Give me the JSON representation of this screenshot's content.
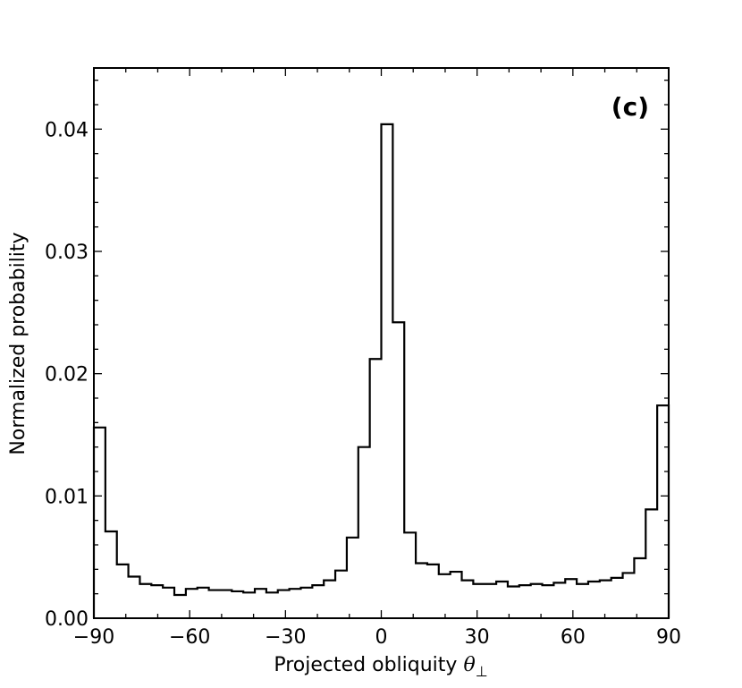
{
  "chart_data": {
    "type": "histogram",
    "panel_label": "(c)",
    "xlabel": "Projected obliquity",
    "xlabel_symbol": "θ",
    "xlabel_subscript": "⊥",
    "ylabel": "Normalized probability",
    "xlim": [
      -90,
      90
    ],
    "ylim": [
      0,
      0.045
    ],
    "x_ticks": [
      -90,
      -60,
      -30,
      0,
      30,
      60,
      90
    ],
    "x_tick_labels": [
      "−90",
      "−60",
      "−30",
      "0",
      "30",
      "60",
      "90"
    ],
    "y_ticks": [
      0.0,
      0.01,
      0.02,
      0.03,
      0.04
    ],
    "y_tick_labels": [
      "0.00",
      "0.01",
      "0.02",
      "0.03",
      "0.04"
    ],
    "bin_width": 3.6,
    "bin_edges_start": -90,
    "values": [
      0.0156,
      0.0071,
      0.0044,
      0.0034,
      0.0028,
      0.0027,
      0.0025,
      0.0019,
      0.0024,
      0.0025,
      0.0023,
      0.0023,
      0.0022,
      0.0021,
      0.0024,
      0.0021,
      0.0023,
      0.0024,
      0.0025,
      0.0027,
      0.0031,
      0.0039,
      0.0066,
      0.014,
      0.0212,
      0.0404,
      0.0242,
      0.007,
      0.0045,
      0.0044,
      0.0036,
      0.0038,
      0.0031,
      0.0028,
      0.0028,
      0.003,
      0.0026,
      0.0027,
      0.0028,
      0.0027,
      0.0029,
      0.0032,
      0.0028,
      0.003,
      0.0031,
      0.0033,
      0.0037,
      0.0049,
      0.0089,
      0.0174
    ],
    "line_color": "#000000"
  }
}
